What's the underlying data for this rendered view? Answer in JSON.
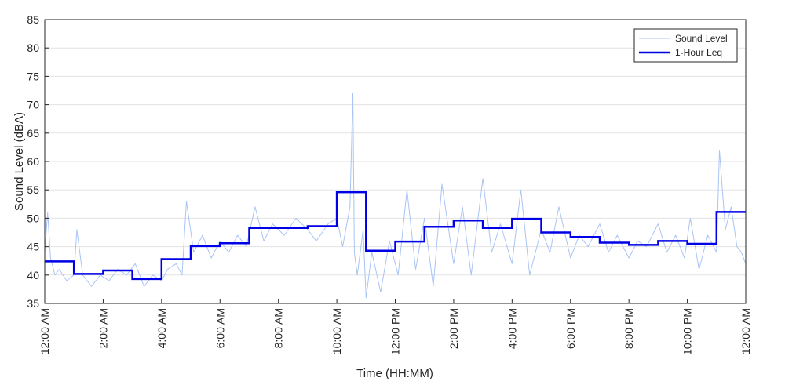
{
  "chart_data": {
    "type": "line",
    "title": "",
    "xlabel": "Time (HH:MM)",
    "ylabel": "Sound Level (dBA)",
    "x_ticks": [
      "12:00 AM",
      "2:00 AM",
      "4:00 AM",
      "6:00 AM",
      "8:00 AM",
      "10:00 AM",
      "12:00 PM",
      "2:00 PM",
      "4:00 PM",
      "6:00 PM",
      "8:00 PM",
      "10:00 PM",
      "12:00 AM"
    ],
    "xlim_hours": [
      0,
      24
    ],
    "ylim": [
      35,
      85
    ],
    "y_ticks": [
      35,
      40,
      45,
      50,
      55,
      60,
      65,
      70,
      75,
      80,
      85
    ],
    "grid": "horizontal",
    "legend_position": "top-right",
    "series": [
      {
        "name": "Sound Level",
        "color": "#a9c4f5",
        "style": "thin line, high-frequency fluctuation",
        "x_hours": [
          0,
          0.1,
          0.2,
          0.35,
          0.5,
          0.75,
          1.0,
          1.1,
          1.3,
          1.6,
          1.9,
          2.2,
          2.5,
          2.8,
          3.1,
          3.4,
          3.7,
          4.0,
          4.2,
          4.5,
          4.7,
          4.85,
          5.1,
          5.4,
          5.7,
          6.0,
          6.3,
          6.6,
          6.9,
          7.2,
          7.5,
          7.8,
          8.2,
          8.6,
          9.0,
          9.3,
          9.7,
          10.0,
          10.2,
          10.45,
          10.55,
          10.6,
          10.7,
          10.9,
          11.0,
          11.2,
          11.5,
          11.8,
          12.1,
          12.4,
          12.7,
          13.0,
          13.3,
          13.6,
          14.0,
          14.3,
          14.6,
          15.0,
          15.3,
          15.6,
          16.0,
          16.3,
          16.6,
          17.0,
          17.3,
          17.6,
          18.0,
          18.3,
          18.6,
          19.0,
          19.3,
          19.6,
          20.0,
          20.3,
          20.6,
          21.0,
          21.3,
          21.6,
          21.9,
          22.1,
          22.4,
          22.7,
          23.0,
          23.1,
          23.3,
          23.5,
          23.7,
          23.85,
          24.0
        ],
        "values": [
          44,
          51,
          43,
          40,
          41,
          39,
          40,
          48,
          40,
          38,
          40,
          39,
          41,
          40,
          42,
          38,
          40,
          39,
          41,
          42,
          40,
          53,
          44,
          47,
          43,
          46,
          44,
          47,
          45,
          52,
          46,
          49,
          47,
          50,
          48,
          46,
          49,
          50,
          45,
          52,
          72,
          44,
          40,
          48,
          36,
          44,
          37,
          46,
          40,
          55,
          41,
          50,
          38,
          56,
          42,
          52,
          40,
          57,
          44,
          49,
          42,
          55,
          40,
          48,
          44,
          52,
          43,
          47,
          45,
          49,
          44,
          47,
          43,
          46,
          45,
          49,
          44,
          47,
          43,
          50,
          41,
          47,
          44,
          62,
          48,
          52,
          45,
          44,
          42
        ]
      },
      {
        "name": "1-Hour Leq",
        "color": "#0000e6",
        "style": "step",
        "x_hours": [
          0,
          1,
          2,
          3,
          4,
          5,
          6,
          7,
          8,
          9,
          10,
          11,
          12,
          13,
          14,
          15,
          16,
          17,
          18,
          19,
          20,
          21,
          22,
          23
        ],
        "values": [
          42.4,
          40.2,
          40.8,
          39.3,
          42.8,
          45.1,
          45.6,
          48.3,
          48.3,
          48.6,
          54.6,
          44.3,
          45.9,
          48.5,
          49.6,
          48.3,
          49.9,
          47.5,
          46.7,
          45.7,
          45.3,
          46.0,
          45.5,
          51.1
        ]
      }
    ]
  }
}
